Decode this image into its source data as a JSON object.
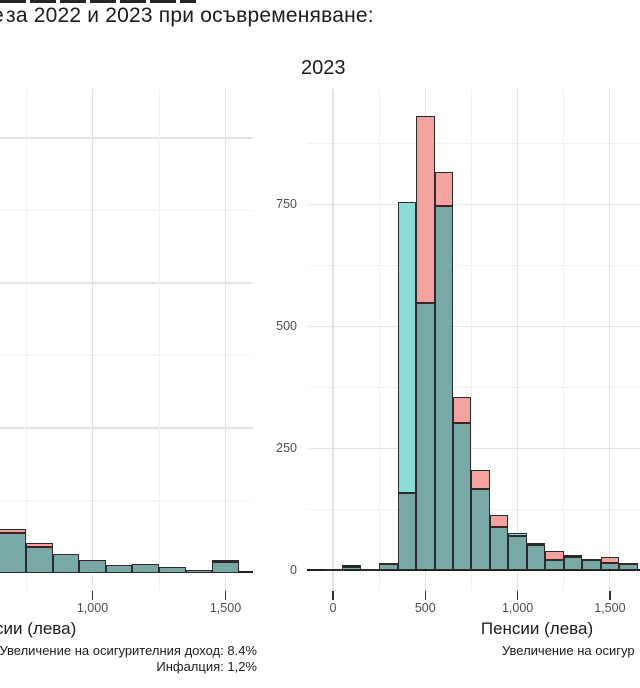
{
  "figure_title": {
    "visible_text": "за 2022 и 2023 при осъвременяване:",
    "cut_fragment_char": "е"
  },
  "colors": {
    "pink_fill": "#F3A2A0",
    "cyan_fill": "#8BDBD6",
    "overlap_fill": "#79A9A6",
    "bar_outline": "#2B2B2B",
    "grid_major": "#E4E4E4",
    "grid_minor": "#F1F1F1",
    "axis_text": "#4D4D4D",
    "dark_text": "#1B1B1B"
  },
  "chart_data": [
    {
      "type": "bar",
      "subtype": "overlaid-histograms",
      "panel_title": "",
      "xlabel": "Пенсии (лева)",
      "ylabel": "",
      "caption_lines": [
        "Увеличение на осигурителния доход: 8.4%",
        "Инфалция: 1,2%"
      ],
      "bin_width": 100,
      "x_ticks": [
        {
          "value": 1000,
          "label": "1,000"
        },
        {
          "value": 1500,
          "label": "1,500"
        }
      ],
      "y_ticks": [],
      "grid_y_values": [
        250,
        500,
        750
      ],
      "series": [
        {
          "name": "pink",
          "color_key": "pink_fill",
          "bins": [
            [
              600,
              122
            ],
            [
              700,
              76
            ],
            [
              800,
              51
            ],
            [
              900,
              34
            ],
            [
              1000,
              23
            ],
            [
              1100,
              14
            ],
            [
              1200,
              17
            ],
            [
              1300,
              12
            ],
            [
              1400,
              6
            ],
            [
              1500,
              23
            ]
          ]
        },
        {
          "name": "cyan",
          "color_key": "cyan_fill",
          "bins": [
            [
              600,
              118
            ],
            [
              700,
              69
            ],
            [
              800,
              44
            ],
            [
              900,
              33
            ],
            [
              1000,
              22
            ],
            [
              1100,
              13
            ],
            [
              1200,
              16
            ],
            [
              1300,
              11
            ],
            [
              1400,
              5
            ],
            [
              1500,
              19
            ]
          ]
        }
      ]
    },
    {
      "type": "bar",
      "subtype": "overlaid-histograms",
      "panel_title": "2023",
      "xlabel": "Пенсии (лева)",
      "ylabel": "",
      "caption_lines": [
        "Увеличение на осигур"
      ],
      "bin_width": 100,
      "x_ticks": [
        {
          "value": 0,
          "label": "0"
        },
        {
          "value": 500,
          "label": "500"
        },
        {
          "value": 1000,
          "label": "1,000"
        },
        {
          "value": 1500,
          "label": "1,500"
        }
      ],
      "y_ticks": [
        {
          "value": 0,
          "label": "0"
        },
        {
          "value": 250,
          "label": "250"
        },
        {
          "value": 500,
          "label": "500"
        },
        {
          "value": 750,
          "label": "750"
        }
      ],
      "grid_y_values": [
        250,
        500,
        750
      ],
      "ylim": [
        0,
        990
      ],
      "series": [
        {
          "name": "pink",
          "color_key": "pink_fill",
          "bins": [
            [
              0,
              3
            ],
            [
              100,
              11
            ],
            [
              200,
              4
            ],
            [
              300,
              13
            ],
            [
              400,
              158
            ],
            [
              500,
              932
            ],
            [
              600,
              818
            ],
            [
              700,
              356
            ],
            [
              800,
              207
            ],
            [
              900,
              114
            ],
            [
              1000,
              71
            ],
            [
              1100,
              52
            ],
            [
              1200,
              40
            ],
            [
              1300,
              28
            ],
            [
              1400,
              21
            ],
            [
              1500,
              27
            ],
            [
              1600,
              14
            ]
          ]
        },
        {
          "name": "cyan",
          "color_key": "cyan_fill",
          "bins": [
            [
              0,
              3
            ],
            [
              100,
              8
            ],
            [
              200,
              4
            ],
            [
              300,
              16
            ],
            [
              400,
              755
            ],
            [
              500,
              548
            ],
            [
              600,
              748
            ],
            [
              700,
              303
            ],
            [
              800,
              168
            ],
            [
              900,
              90
            ],
            [
              1000,
              76
            ],
            [
              1100,
              56
            ],
            [
              1200,
              21
            ],
            [
              1300,
              31
            ],
            [
              1400,
              23
            ],
            [
              1500,
              16
            ],
            [
              1600,
              16
            ]
          ]
        }
      ]
    }
  ]
}
